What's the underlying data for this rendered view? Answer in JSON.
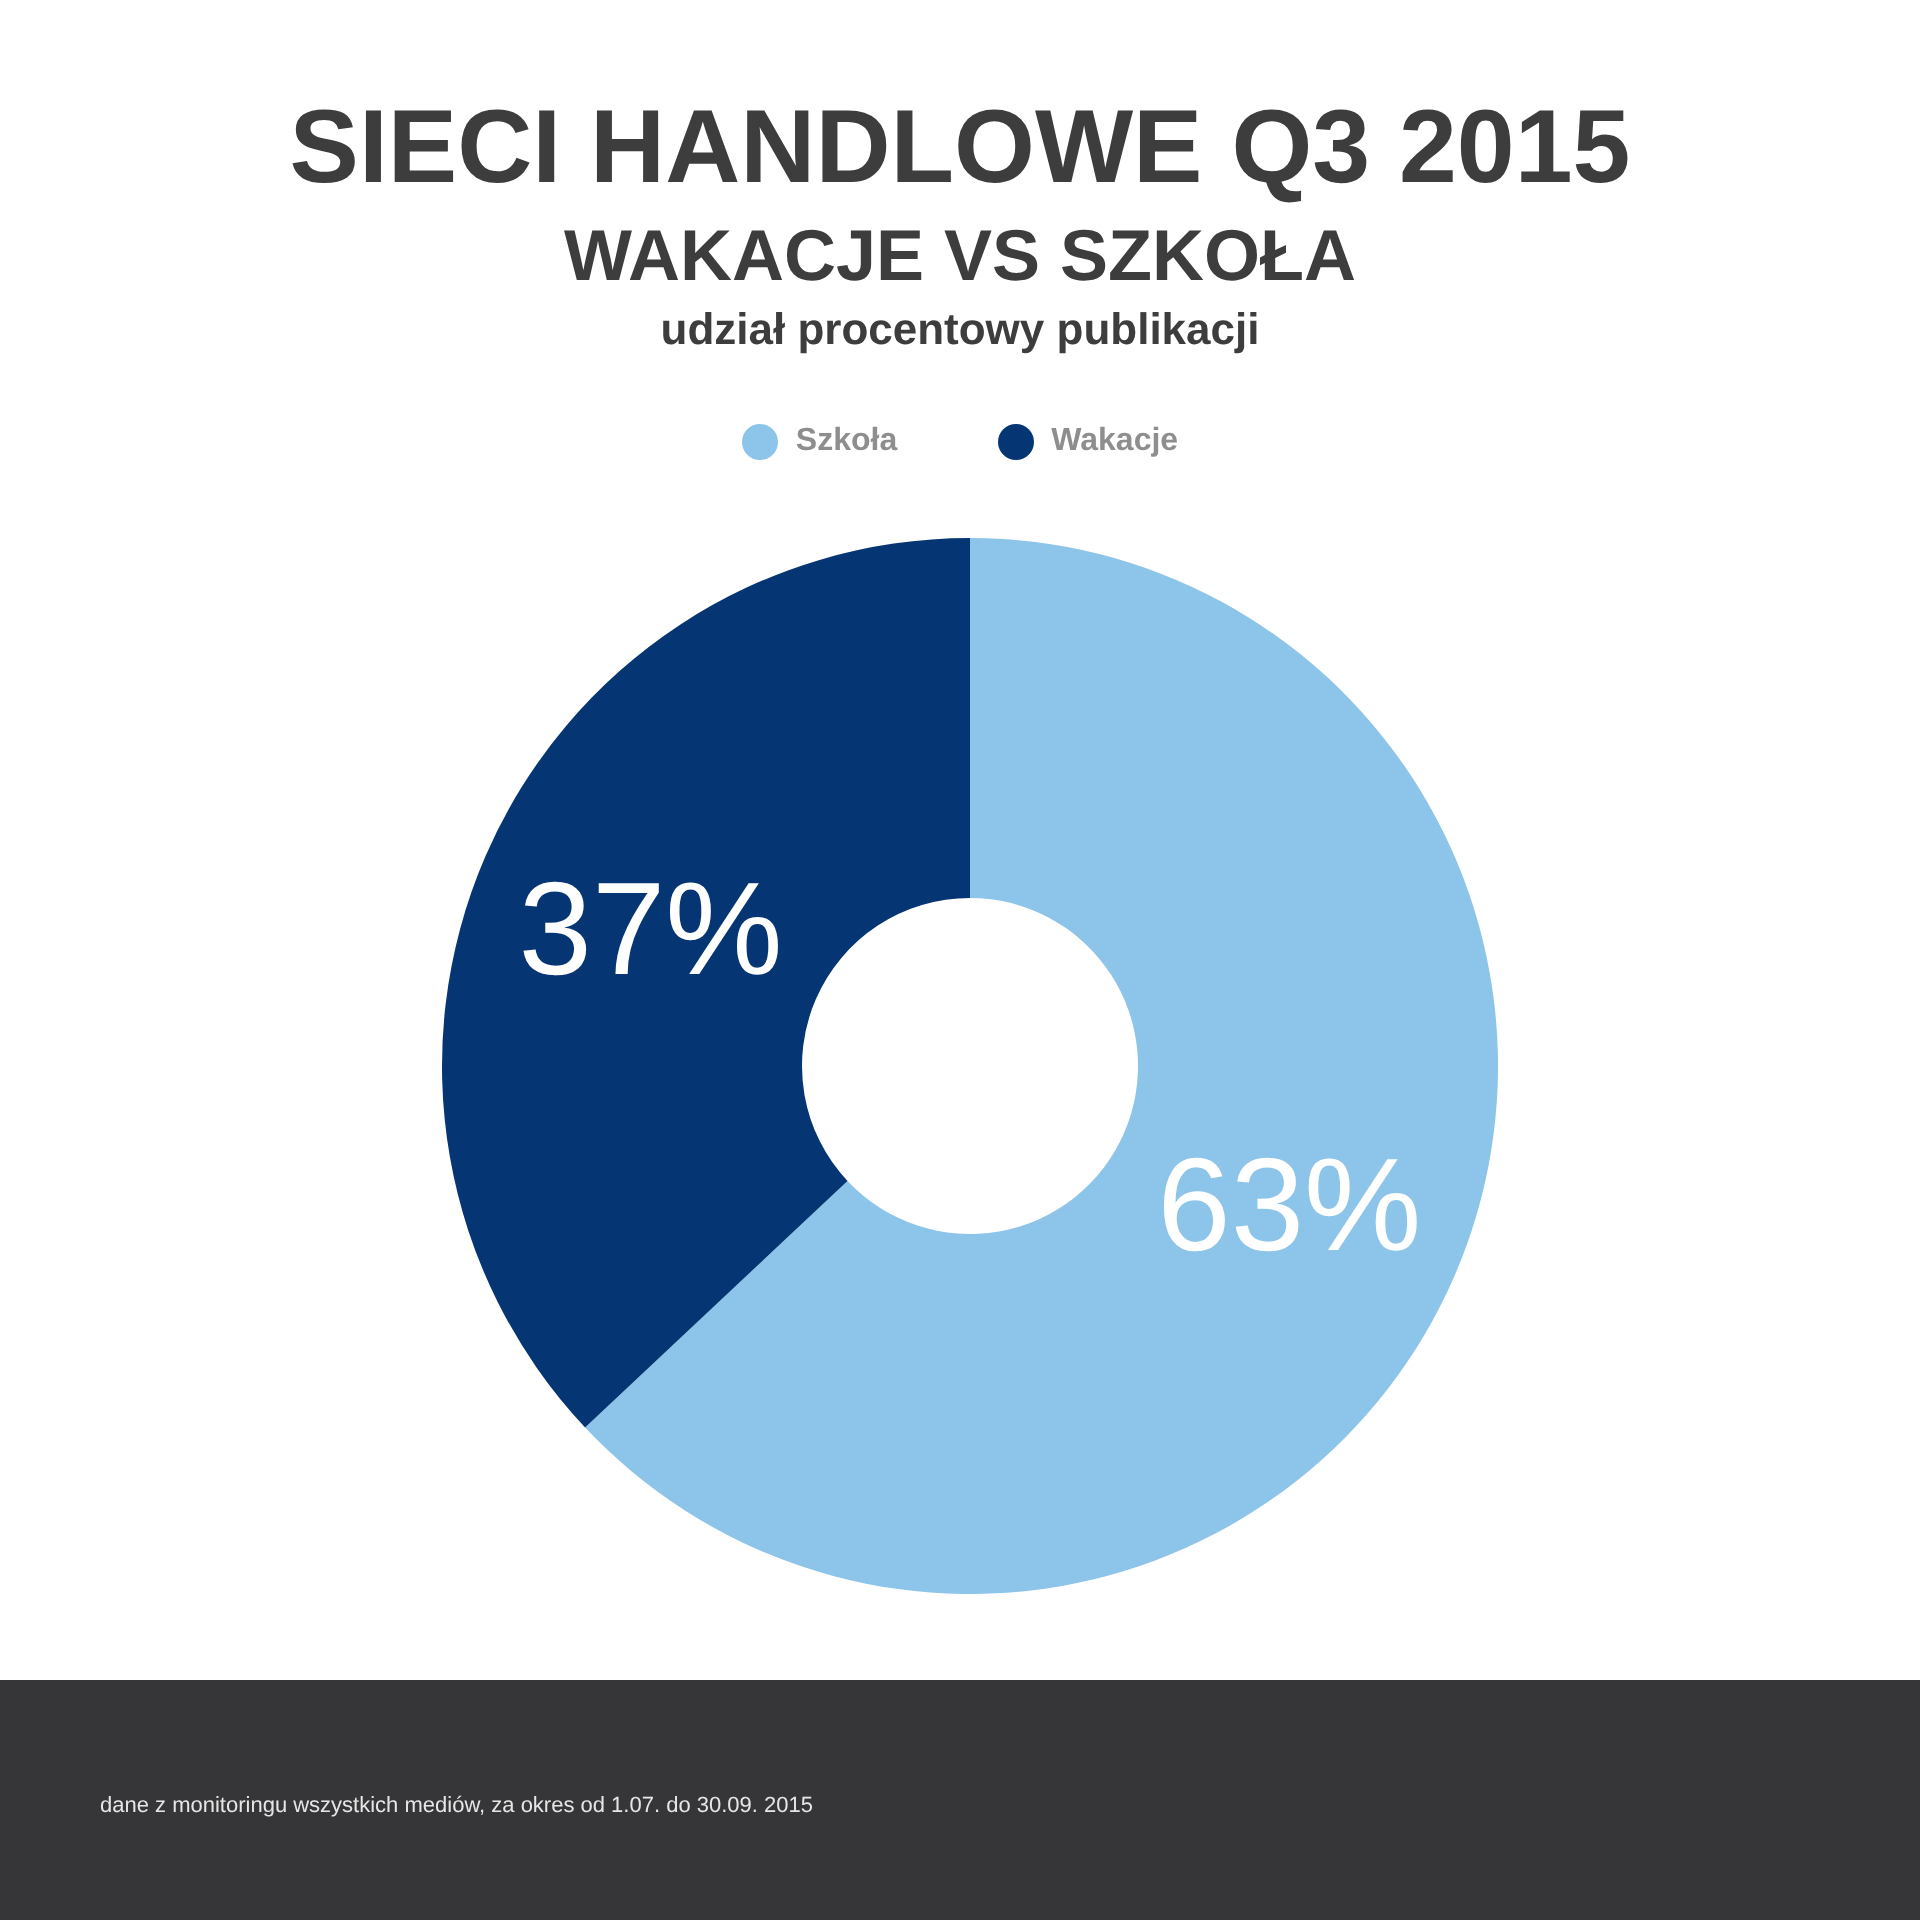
{
  "chart_data": {
    "type": "donut",
    "title": "SIECI HANDLOWE Q3 2015",
    "subtitle": "WAKACJE VS SZKOŁA\nudział procentowy publikacji",
    "categories": [
      "Szkoła",
      "Wakacje"
    ],
    "values": [
      63,
      37
    ],
    "colors": [
      "#8dc4ea",
      "#063573"
    ],
    "value_labels": [
      "63%",
      "37%"
    ],
    "legend": "top",
    "annotations": [
      "dane z monitoringu wszystkich mediów, za okres od 1.07. do 30.09. 2015"
    ]
  }
}
